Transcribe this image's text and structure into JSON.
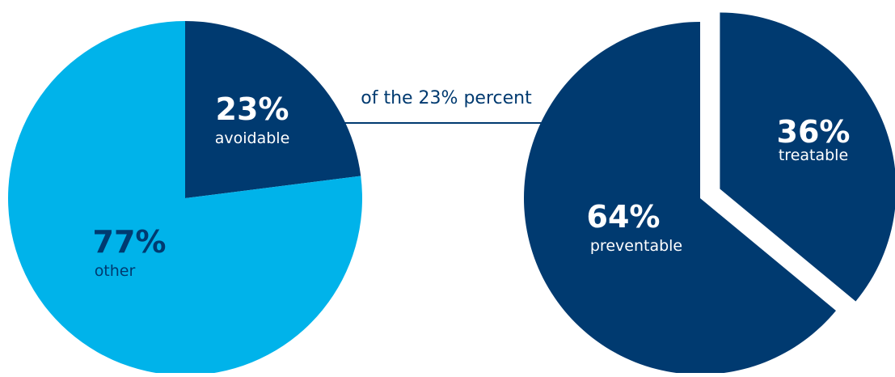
{
  "colors": {
    "dark": "#003a70",
    "light": "#00b3ea",
    "connector": "#003a70",
    "text_on_dark": "#ffffff",
    "text_on_light": "#003a70"
  },
  "connector_label": "of the 23% percent",
  "chart_data": [
    {
      "type": "pie",
      "slices": [
        {
          "label": "avoidable",
          "value": 23,
          "value_label": "23%",
          "color": "#003a70"
        },
        {
          "label": "other",
          "value": 77,
          "value_label": "77%",
          "color": "#00b3ea"
        }
      ]
    },
    {
      "type": "pie",
      "slices": [
        {
          "label": "treatable",
          "value": 36,
          "value_label": "36%",
          "color": "#003a70",
          "exploded": true
        },
        {
          "label": "preventable",
          "value": 64,
          "value_label": "64%",
          "color": "#003a70"
        }
      ]
    }
  ]
}
